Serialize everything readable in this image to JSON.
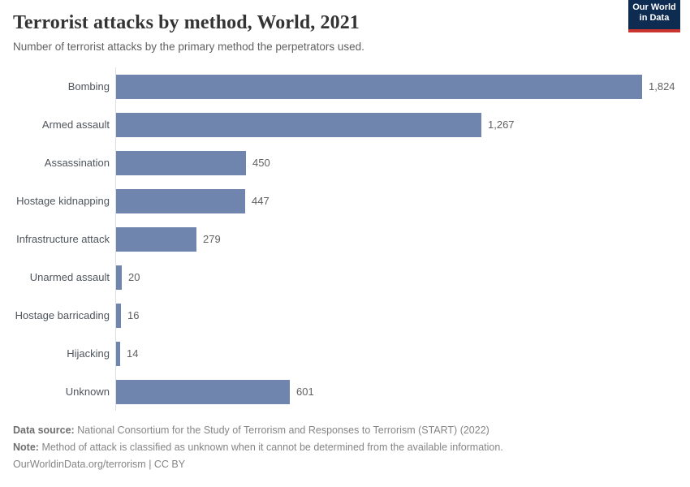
{
  "header": {
    "title": "Terrorist attacks by method, World, 2021",
    "subtitle": "Number of terrorist attacks by the primary method the perpetrators used.",
    "logo": {
      "line1": "Our World",
      "line2": "in Data"
    }
  },
  "chart_data": {
    "type": "bar",
    "orientation": "horizontal",
    "title": "Terrorist attacks by method, World, 2021",
    "xlabel": "",
    "ylabel": "",
    "categories": [
      "Bombing",
      "Armed assault",
      "Assassination",
      "Hostage kidnapping",
      "Infrastructure attack",
      "Unarmed assault",
      "Hostage barricading",
      "Hijacking",
      "Unknown"
    ],
    "values": [
      1824,
      1267,
      450,
      447,
      279,
      20,
      16,
      14,
      601
    ],
    "value_labels": [
      "1,824",
      "1,267",
      "450",
      "447",
      "279",
      "20",
      "16",
      "14",
      "601"
    ],
    "xlim": [
      0,
      1824
    ],
    "grid": false,
    "legend": "none",
    "bar_color": "#6f85ae"
  },
  "footer": {
    "data_source_label": "Data source:",
    "data_source_text": "National Consortium for the Study of Terrorism and Responses to Terrorism (START) (2022)",
    "note_label": "Note:",
    "note_text": "Method of attack is classified as unknown when it cannot be determined from the available information.",
    "link_text": "OurWorldinData.org/terrorism",
    "license_text": "| CC BY"
  },
  "colors": {
    "bar": "#6f85ae",
    "logo_bg": "#0e2c52",
    "logo_stripe": "#c9352e",
    "axis_line": "#dadfe2"
  }
}
